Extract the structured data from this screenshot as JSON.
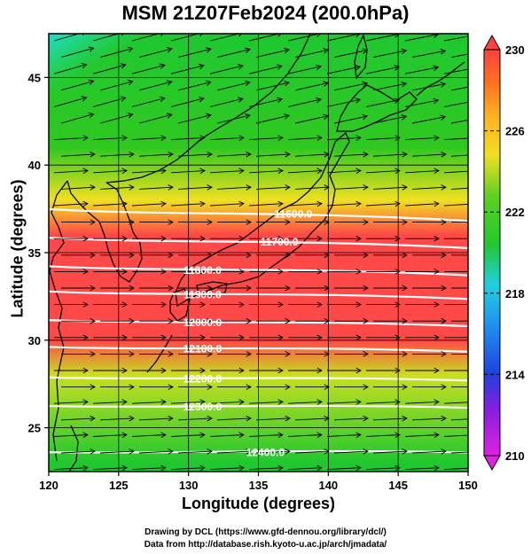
{
  "title": "MSM 21Z07Feb2024 (200.0hPa)",
  "x_axis": {
    "label": "Longitude (degrees)",
    "ticks": [
      "120",
      "125",
      "130",
      "135",
      "140",
      "145",
      "150"
    ]
  },
  "y_axis": {
    "label": "Latitude  (degrees)",
    "ticks": [
      "25",
      "30",
      "35",
      "40",
      "45"
    ]
  },
  "colorbar": {
    "ticks": [
      "210",
      "214",
      "218",
      "222",
      "226",
      "230"
    ]
  },
  "contour_labels": [
    "11600.0",
    "11700.0",
    "11800.0",
    "11900.0",
    "12000.0",
    "12100.0",
    "12200.0",
    "12300.0",
    "12400.0"
  ],
  "credits": {
    "line1": "Drawing by DCL (https://www.gfd-dennou.org/library/dcl/)",
    "line2": "Data from http://database.rish.kyoto-u.ac.jp/arch/jmadata/"
  },
  "chart_data": {
    "type": "heatmap",
    "title": "MSM 21Z07Feb2024 (200.0hPa)",
    "xlabel": "Longitude (degrees)",
    "ylabel": "Latitude  (degrees)",
    "xlim": [
      120,
      150
    ],
    "ylim": [
      22.5,
      47.5
    ],
    "color_scale": {
      "min": 210,
      "max": 230,
      "ticks": [
        210,
        214,
        218,
        222,
        226,
        230
      ]
    },
    "colors": {
      "max": "#ff4040",
      "high": "#ff8a20",
      "mid": "#f0e020",
      "low": "#20c820",
      "cyan": "#20d0e0",
      "blue": "#2040e0",
      "min": "#e020e0"
    },
    "temperature_bands": [
      {
        "lat": 47,
        "value": 221
      },
      {
        "lat": 41,
        "value": 222
      },
      {
        "lat": 38,
        "value": 225
      },
      {
        "lat": 36,
        "value": 229
      },
      {
        "lat": 30,
        "value": 229
      },
      {
        "lat": 28,
        "value": 224
      },
      {
        "lat": 23,
        "value": 221
      }
    ],
    "height_contours": [
      {
        "value": "11600.0",
        "label_lon": 137.5,
        "label_lat": 37.2
      },
      {
        "value": "11700.0",
        "label_lon": 136.5,
        "label_lat": 35.6
      },
      {
        "value": "11800.0",
        "label_lon": 131.0,
        "label_lat": 34.0
      },
      {
        "value": "11900.0",
        "label_lon": 131.0,
        "label_lat": 32.6
      },
      {
        "value": "12000.0",
        "label_lon": 131.0,
        "label_lat": 31.0
      },
      {
        "value": "12100.0",
        "label_lon": 131.0,
        "label_lat": 29.5
      },
      {
        "value": "12200.0",
        "label_lon": 131.0,
        "label_lat": 27.8
      },
      {
        "value": "12300.0",
        "label_lon": 131.0,
        "label_lat": 26.2
      },
      {
        "value": "12400.0",
        "label_lon": 135.5,
        "label_lat": 23.6
      }
    ],
    "wind": "westerly",
    "grid": true
  }
}
